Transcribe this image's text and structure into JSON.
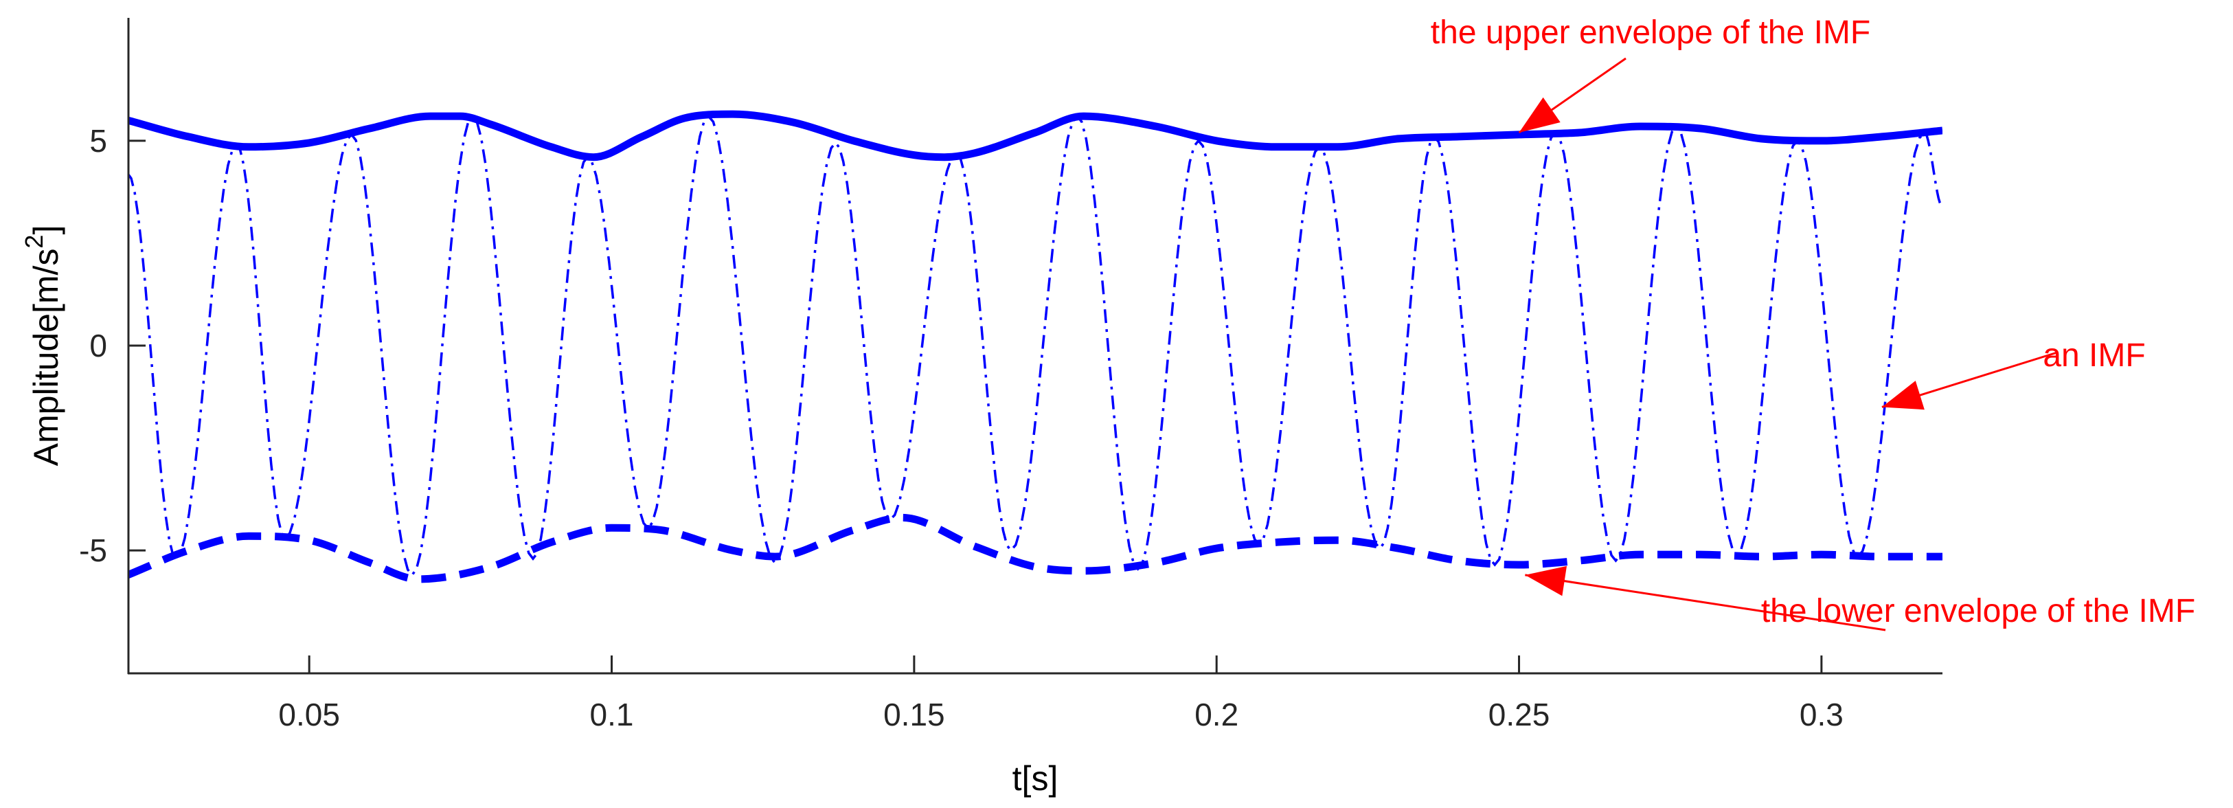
{
  "chart_data": {
    "type": "line",
    "xlabel": "t[s]",
    "ylabel_base": "Amplitude[m/s",
    "ylabel_sup": "2",
    "ylabel_end": "]",
    "xlim": [
      0.02,
      0.32
    ],
    "ylim": [
      -8,
      8
    ],
    "xticks": [
      0.05,
      0.1,
      0.15,
      0.2,
      0.25,
      0.3
    ],
    "xtick_labels": [
      "0.05",
      "0.1",
      "0.15",
      "0.2",
      "0.25",
      "0.3"
    ],
    "yticks": [
      -5,
      0,
      5
    ],
    "ytick_labels": [
      "-5",
      "0",
      "5"
    ],
    "grid": false,
    "line_color": "#0000ff",
    "annotation_color": "#ff0000",
    "series": [
      {
        "style": "solid-thick",
        "x": [
          0.02,
          0.03,
          0.04,
          0.05,
          0.06,
          0.07,
          0.075,
          0.08,
          0.09,
          0.097,
          0.105,
          0.112,
          0.12,
          0.13,
          0.14,
          0.15,
          0.155,
          0.16,
          0.17,
          0.178,
          0.19,
          0.2,
          0.21,
          0.22,
          0.23,
          0.24,
          0.25,
          0.26,
          0.27,
          0.28,
          0.29,
          0.3,
          0.31,
          0.32
        ],
        "y": [
          5.5,
          5.1,
          4.85,
          4.95,
          5.3,
          5.6,
          5.6,
          5.4,
          4.85,
          4.6,
          5.1,
          5.55,
          5.65,
          5.45,
          5.0,
          4.65,
          4.6,
          4.7,
          5.2,
          5.6,
          5.35,
          5.0,
          4.85,
          4.85,
          5.05,
          5.1,
          5.15,
          5.2,
          5.35,
          5.3,
          5.05,
          5.0,
          5.1,
          5.25
        ]
      },
      {
        "style": "dashed-thick",
        "x": [
          0.02,
          0.03,
          0.04,
          0.05,
          0.06,
          0.068,
          0.08,
          0.09,
          0.1,
          0.108,
          0.12,
          0.127,
          0.14,
          0.148,
          0.16,
          0.17,
          0.178,
          0.19,
          0.2,
          0.21,
          0.22,
          0.23,
          0.24,
          0.25,
          0.26,
          0.27,
          0.28,
          0.29,
          0.3,
          0.31,
          0.32
        ],
        "y": [
          -5.6,
          -5.0,
          -4.65,
          -4.75,
          -5.3,
          -5.7,
          -5.4,
          -4.8,
          -4.45,
          -4.5,
          -5.0,
          -5.15,
          -4.5,
          -4.2,
          -4.9,
          -5.4,
          -5.5,
          -5.3,
          -4.95,
          -4.8,
          -4.75,
          -4.95,
          -5.25,
          -5.35,
          -5.25,
          -5.1,
          -5.1,
          -5.15,
          -5.1,
          -5.15,
          -5.15
        ]
      },
      {
        "style": "dashdot-thin",
        "peaks_x": [
          0.038,
          0.057,
          0.077,
          0.096,
          0.116,
          0.137,
          0.157,
          0.177,
          0.197,
          0.217,
          0.236,
          0.256,
          0.276,
          0.296,
          0.317
        ],
        "peaks_y": [
          4.9,
          5.15,
          5.6,
          4.6,
          5.6,
          4.95,
          4.7,
          5.6,
          5.0,
          4.85,
          5.1,
          5.2,
          5.35,
          5.0,
          5.2
        ],
        "troughs_x": [
          0.028,
          0.046,
          0.067,
          0.087,
          0.106,
          0.127,
          0.146,
          0.166,
          0.187,
          0.207,
          0.227,
          0.246,
          0.266,
          0.286,
          0.306
        ],
        "troughs_y": [
          -5.2,
          -4.7,
          -5.6,
          -5.2,
          -4.45,
          -5.3,
          -4.25,
          -5.0,
          -5.45,
          -4.85,
          -4.95,
          -5.35,
          -5.25,
          -5.1,
          -5.15
        ],
        "start": [
          0.02,
          4.2
        ],
        "end": [
          0.32,
          3.4
        ]
      }
    ],
    "annotations": [
      {
        "text": "the upper envelope of the IMF",
        "target": [
          0.25,
          5.2
        ]
      },
      {
        "text": "an IMF",
        "target": [
          0.31,
          -1.5
        ]
      },
      {
        "text": "the lower envelope of the IMF",
        "target": [
          0.251,
          -5.6
        ]
      }
    ]
  }
}
